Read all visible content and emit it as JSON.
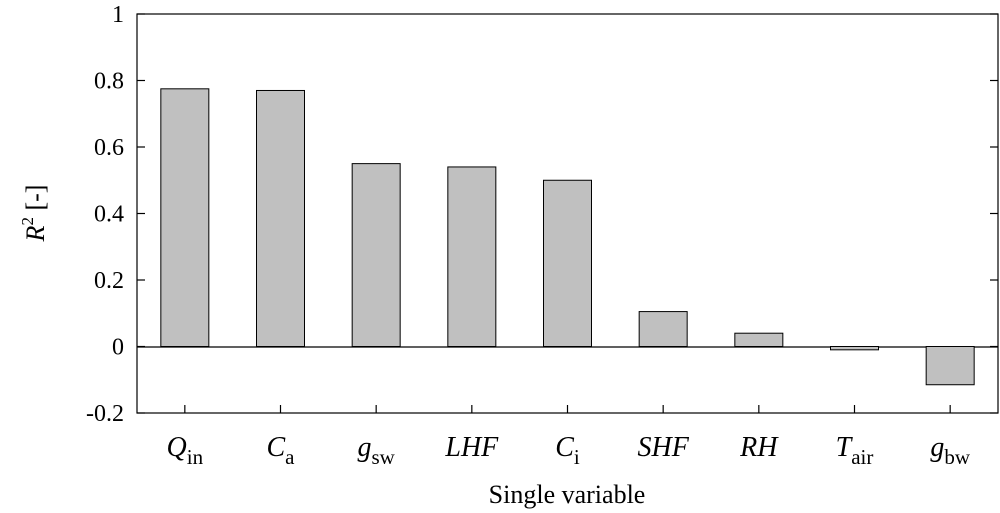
{
  "chart_data": {
    "type": "bar",
    "title": "",
    "xlabel": "Single variable",
    "ylabel": {
      "main": "R",
      "sup": "2",
      "unit": " [-]"
    },
    "ylim": [
      -0.2,
      1.0
    ],
    "yticks": [
      -0.2,
      0,
      0.2,
      0.4,
      0.6,
      0.8,
      1
    ],
    "ytick_labels": [
      "-0.2",
      "0",
      "0.2",
      "0.4",
      "0.6",
      "0.8",
      "1"
    ],
    "categories": [
      {
        "main": "Q",
        "sub": "in"
      },
      {
        "main": "C",
        "sub": "a"
      },
      {
        "main": "g",
        "sub": "sw"
      },
      {
        "main": "LHF",
        "sub": ""
      },
      {
        "main": "C",
        "sub": "i"
      },
      {
        "main": "SHF",
        "sub": ""
      },
      {
        "main": "RH",
        "sub": ""
      },
      {
        "main": "T",
        "sub": "air"
      },
      {
        "main": "g",
        "sub": "bw"
      }
    ],
    "values": [
      0.775,
      0.77,
      0.55,
      0.54,
      0.5,
      0.105,
      0.04,
      -0.01,
      -0.115
    ],
    "bar_color": "#c0c0c0",
    "bar_edge_color": "#000000",
    "grid": false
  }
}
